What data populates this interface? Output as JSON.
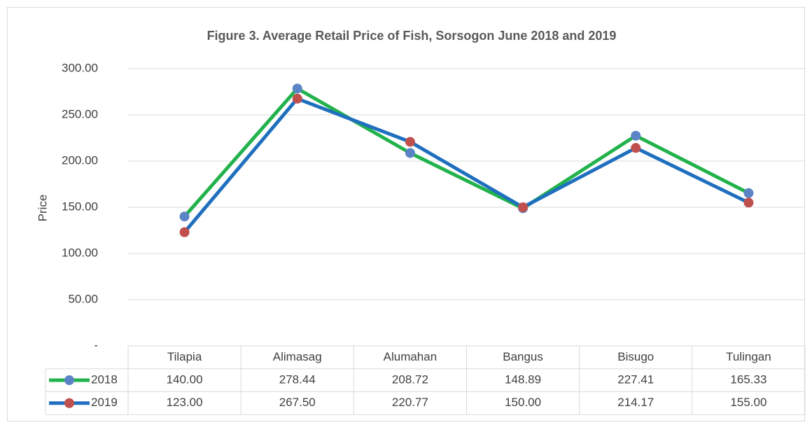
{
  "chart_data": {
    "type": "line",
    "title": "Figure 3. Average Retail Price of Fish, Sorsogon June 2018 and 2019",
    "y_label": "Price",
    "categories": [
      "Tilapia",
      "Alimasag",
      "Alumahan",
      "Bangus",
      "Bisugo",
      "Tulingan"
    ],
    "series": [
      {
        "name": "2018",
        "color": "#22b24c",
        "marker_color": "#5b84c6",
        "values": [
          140,
          278.44,
          208.72,
          148.89,
          227.41,
          165.33
        ],
        "value_labels": [
          "140.00",
          "278.44",
          "208.72",
          "148.89",
          "227.41",
          "165.33"
        ]
      },
      {
        "name": "2019",
        "color": "#1f6fbf",
        "marker_color": "#c0504d",
        "values": [
          123,
          267.5,
          220.77,
          150,
          214.17,
          155
        ],
        "value_labels": [
          "123.00",
          "267.50",
          "220.77",
          "150.00",
          "214.17",
          "155.00"
        ]
      }
    ],
    "ylim": [
      0,
      300
    ],
    "yticks": [
      {
        "value": 0,
        "label": "-"
      },
      {
        "value": 50,
        "label": "50.00"
      },
      {
        "value": 100,
        "label": "100.00"
      },
      {
        "value": 150,
        "label": "150.00"
      },
      {
        "value": 200,
        "label": "200.00"
      },
      {
        "value": 250,
        "label": "250.00"
      },
      {
        "value": 300,
        "label": "300.00"
      }
    ],
    "grid": true
  }
}
